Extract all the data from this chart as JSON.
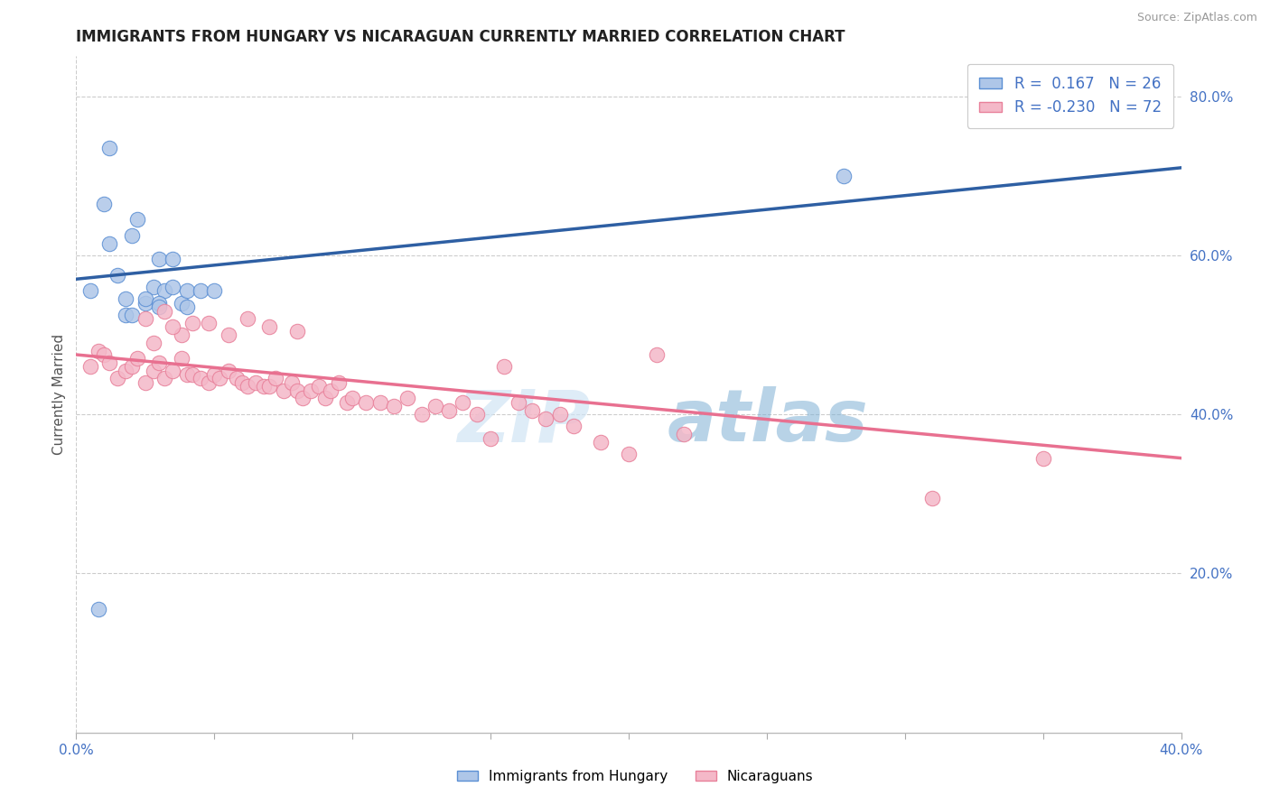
{
  "title": "IMMIGRANTS FROM HUNGARY VS NICARAGUAN CURRENTLY MARRIED CORRELATION CHART",
  "source": "Source: ZipAtlas.com",
  "ylabel": "Currently Married",
  "xlim": [
    0.0,
    0.4
  ],
  "ylim": [
    0.0,
    0.85
  ],
  "watermark_zip": "ZIP",
  "watermark_atlas": "atlas",
  "hungary_color": "#aec6e8",
  "nicaragua_color": "#f4b8c8",
  "hungary_edge_color": "#5b8fd4",
  "nicaragua_edge_color": "#e8809a",
  "hungary_line_color": "#2e5fa3",
  "nicaragua_line_color": "#e87090",
  "hungary_R": 0.167,
  "hungary_N": 26,
  "nicaragua_R": -0.23,
  "nicaragua_N": 72,
  "hungary_line_x0": 0.0,
  "hungary_line_y0": 0.57,
  "hungary_line_x1": 0.4,
  "hungary_line_y1": 0.71,
  "nicaragua_line_x0": 0.0,
  "nicaragua_line_y0": 0.475,
  "nicaragua_line_x1": 0.4,
  "nicaragua_line_y1": 0.345,
  "hungary_x": [
    0.005,
    0.01,
    0.012,
    0.015,
    0.018,
    0.02,
    0.022,
    0.025,
    0.028,
    0.03,
    0.032,
    0.035,
    0.038,
    0.04,
    0.045,
    0.05,
    0.02,
    0.025,
    0.03,
    0.035,
    0.04,
    0.018,
    0.012,
    0.278,
    0.03,
    0.008
  ],
  "hungary_y": [
    0.555,
    0.665,
    0.615,
    0.575,
    0.525,
    0.625,
    0.645,
    0.54,
    0.56,
    0.595,
    0.555,
    0.595,
    0.54,
    0.555,
    0.555,
    0.555,
    0.525,
    0.545,
    0.54,
    0.56,
    0.535,
    0.545,
    0.735,
    0.7,
    0.535,
    0.155
  ],
  "nicaragua_x": [
    0.005,
    0.008,
    0.01,
    0.012,
    0.015,
    0.018,
    0.02,
    0.022,
    0.025,
    0.028,
    0.03,
    0.032,
    0.035,
    0.038,
    0.04,
    0.042,
    0.045,
    0.048,
    0.05,
    0.052,
    0.055,
    0.058,
    0.06,
    0.062,
    0.065,
    0.068,
    0.07,
    0.072,
    0.075,
    0.078,
    0.08,
    0.082,
    0.085,
    0.088,
    0.09,
    0.092,
    0.095,
    0.098,
    0.1,
    0.105,
    0.11,
    0.115,
    0.12,
    0.125,
    0.13,
    0.135,
    0.14,
    0.145,
    0.15,
    0.155,
    0.16,
    0.165,
    0.17,
    0.175,
    0.18,
    0.19,
    0.2,
    0.21,
    0.22,
    0.31,
    0.35,
    0.028,
    0.032,
    0.038,
    0.025,
    0.035,
    0.042,
    0.048,
    0.055,
    0.062,
    0.07,
    0.08
  ],
  "nicaragua_y": [
    0.46,
    0.48,
    0.475,
    0.465,
    0.445,
    0.455,
    0.46,
    0.47,
    0.44,
    0.455,
    0.465,
    0.445,
    0.455,
    0.47,
    0.45,
    0.45,
    0.445,
    0.44,
    0.45,
    0.445,
    0.455,
    0.445,
    0.44,
    0.435,
    0.44,
    0.435,
    0.435,
    0.445,
    0.43,
    0.44,
    0.43,
    0.42,
    0.43,
    0.435,
    0.42,
    0.43,
    0.44,
    0.415,
    0.42,
    0.415,
    0.415,
    0.41,
    0.42,
    0.4,
    0.41,
    0.405,
    0.415,
    0.4,
    0.37,
    0.46,
    0.415,
    0.405,
    0.395,
    0.4,
    0.385,
    0.365,
    0.35,
    0.475,
    0.375,
    0.295,
    0.345,
    0.49,
    0.53,
    0.5,
    0.52,
    0.51,
    0.515,
    0.515,
    0.5,
    0.52,
    0.51,
    0.505
  ],
  "background_color": "#ffffff",
  "grid_color": "#cccccc",
  "title_color": "#222222",
  "axis_label_color": "#555555",
  "right_axis_color": "#4472c4",
  "bottom_axis_color": "#4472c4"
}
